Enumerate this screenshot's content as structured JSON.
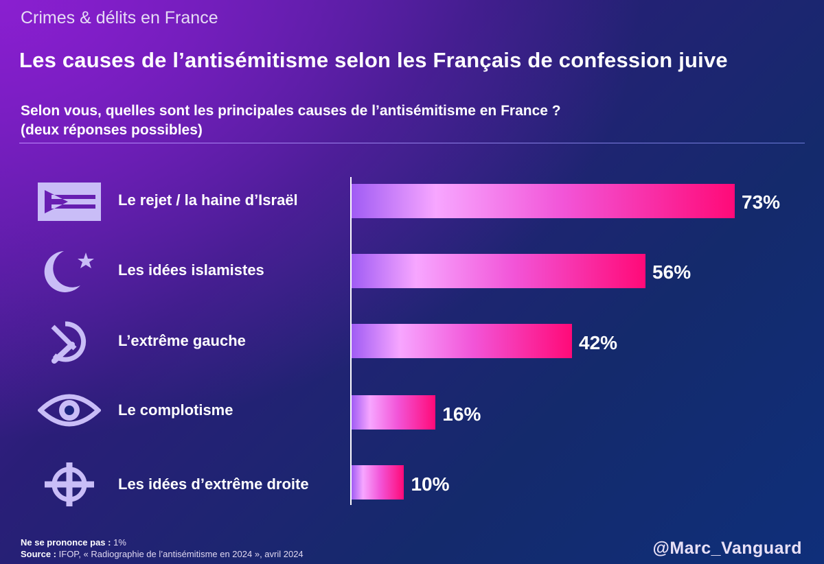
{
  "header": {
    "kicker": "Crimes & délits en France",
    "title": "Les causes de l’antisémitisme selon les Français de confession juive",
    "question_line1": "Selon vous, quelles sont les principales causes de l’antisémitisme en France ?",
    "question_line2": "(deux réponses possibles)"
  },
  "chart_data": {
    "type": "bar",
    "orientation": "horizontal",
    "categories": [
      "Le rejet / la haine d’Israël",
      "Les idées islamistes",
      "L’extrême gauche",
      "Le complotisme",
      "Les idées d’extrême droite"
    ],
    "values": [
      73,
      56,
      42,
      16,
      10
    ],
    "value_labels": [
      "73%",
      "56%",
      "42%",
      "16%",
      "10%"
    ],
    "icons": [
      "israel-flag-icon",
      "crescent-star-icon",
      "hammer-sickle-icon",
      "eye-icon",
      "celtic-cross-icon"
    ],
    "unit": "%",
    "xlim": [
      0,
      100
    ],
    "bar_gradient": [
      "#a05cf4",
      "#f7a6ff",
      "#f255d8",
      "#ff0a78"
    ],
    "icon_color": "#c9bdf7"
  },
  "footer": {
    "nsp_label": "Ne se prononce pas :",
    "nsp_value": "1%",
    "source_label": "Source :",
    "source_text": "IFOP, « Radiographie de l’antisémitisme en 2024 », avril 2024",
    "handle": "@Marc_Vanguard"
  }
}
